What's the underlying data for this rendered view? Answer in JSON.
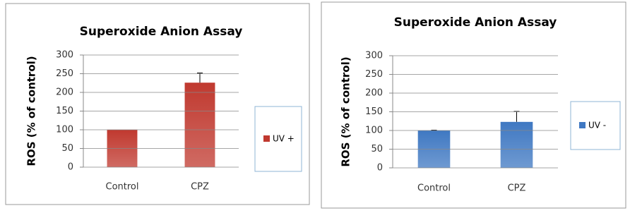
{
  "chart_data": [
    {
      "type": "bar",
      "title": "Superoxide Anion Assay",
      "y_label": "ROS (% of control)",
      "categories": [
        "Control",
        "CPZ"
      ],
      "series": [
        {
          "name": "UV +",
          "color": "#c0392f",
          "values": [
            100,
            226
          ],
          "errors": [
            null,
            26
          ]
        }
      ],
      "ylim": [
        0,
        300
      ],
      "yticks": [
        0,
        50,
        100,
        150,
        200,
        250,
        300
      ],
      "grid": true,
      "legend": "right"
    },
    {
      "type": "bar",
      "title": "Superoxide Anion Assay",
      "y_label": "ROS (% of control)",
      "categories": [
        "Control",
        "CPZ"
      ],
      "series": [
        {
          "name": "UV -",
          "color": "#3f78c2",
          "values": [
            100,
            123
          ],
          "errors": [
            1,
            28
          ]
        }
      ],
      "ylim": [
        0,
        300
      ],
      "yticks": [
        0,
        50,
        100,
        150,
        200,
        250,
        300
      ],
      "grid": true,
      "legend": "right"
    }
  ]
}
